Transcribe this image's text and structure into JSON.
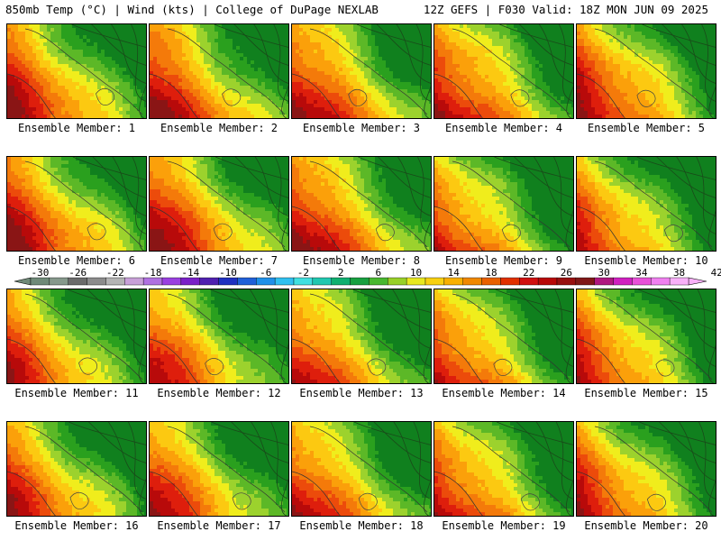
{
  "header": {
    "left_title": "850mb Temp (°C) | Wind (kts) | College of DuPage NEXLAB",
    "right_title": "12Z GEFS | F030 Valid: 18Z MON JUN 09 2025"
  },
  "panels": [
    {
      "label": "Ensemble Member: 1"
    },
    {
      "label": "Ensemble Member: 2"
    },
    {
      "label": "Ensemble Member: 3"
    },
    {
      "label": "Ensemble Member: 4"
    },
    {
      "label": "Ensemble Member: 5"
    },
    {
      "label": "Ensemble Member: 6"
    },
    {
      "label": "Ensemble Member: 7"
    },
    {
      "label": "Ensemble Member: 8"
    },
    {
      "label": "Ensemble Member: 9"
    },
    {
      "label": "Ensemble Member: 10"
    },
    {
      "label": "Ensemble Member: 11"
    },
    {
      "label": "Ensemble Member: 12"
    },
    {
      "label": "Ensemble Member: 13"
    },
    {
      "label": "Ensemble Member: 14"
    },
    {
      "label": "Ensemble Member: 15"
    },
    {
      "label": "Ensemble Member: 16"
    },
    {
      "label": "Ensemble Member: 17"
    },
    {
      "label": "Ensemble Member: 18"
    },
    {
      "label": "Ensemble Member: 19"
    },
    {
      "label": "Ensemble Member: 20"
    }
  ],
  "colorbar": {
    "tick_labels": [
      "-30",
      "-26",
      "-22",
      "-18",
      "-14",
      "-10",
      "-6",
      "-2",
      "2",
      "6",
      "10",
      "14",
      "18",
      "22",
      "26",
      "30",
      "34",
      "38",
      "42"
    ],
    "colors": [
      "#6f8a78",
      "#86998c",
      "#6b6b6b",
      "#8c8c8c",
      "#b4b4b4",
      "#c8a0d8",
      "#b070e0",
      "#9a40e0",
      "#7a20c8",
      "#5020b0",
      "#2030c0",
      "#2060d8",
      "#2090e8",
      "#30c0f0",
      "#40e0e0",
      "#20c8b0",
      "#10b070",
      "#18a040",
      "#48b830",
      "#98d028",
      "#e8e820",
      "#f8d010",
      "#f8b000",
      "#f08800",
      "#e86000",
      "#e03000",
      "#d01010",
      "#b80808",
      "#981010",
      "#801818",
      "#b01880",
      "#d020c0",
      "#e850d8",
      "#f080f0",
      "#f8b0f8"
    ]
  },
  "map_palette": [
    "#10801e",
    "#2aa01e",
    "#5cb827",
    "#9cd22d",
    "#f0ed1c",
    "#fcc911",
    "#fba00a",
    "#f47a0a",
    "#ec4b0b",
    "#de1e0c",
    "#b80a0a",
    "#8a1515"
  ]
}
